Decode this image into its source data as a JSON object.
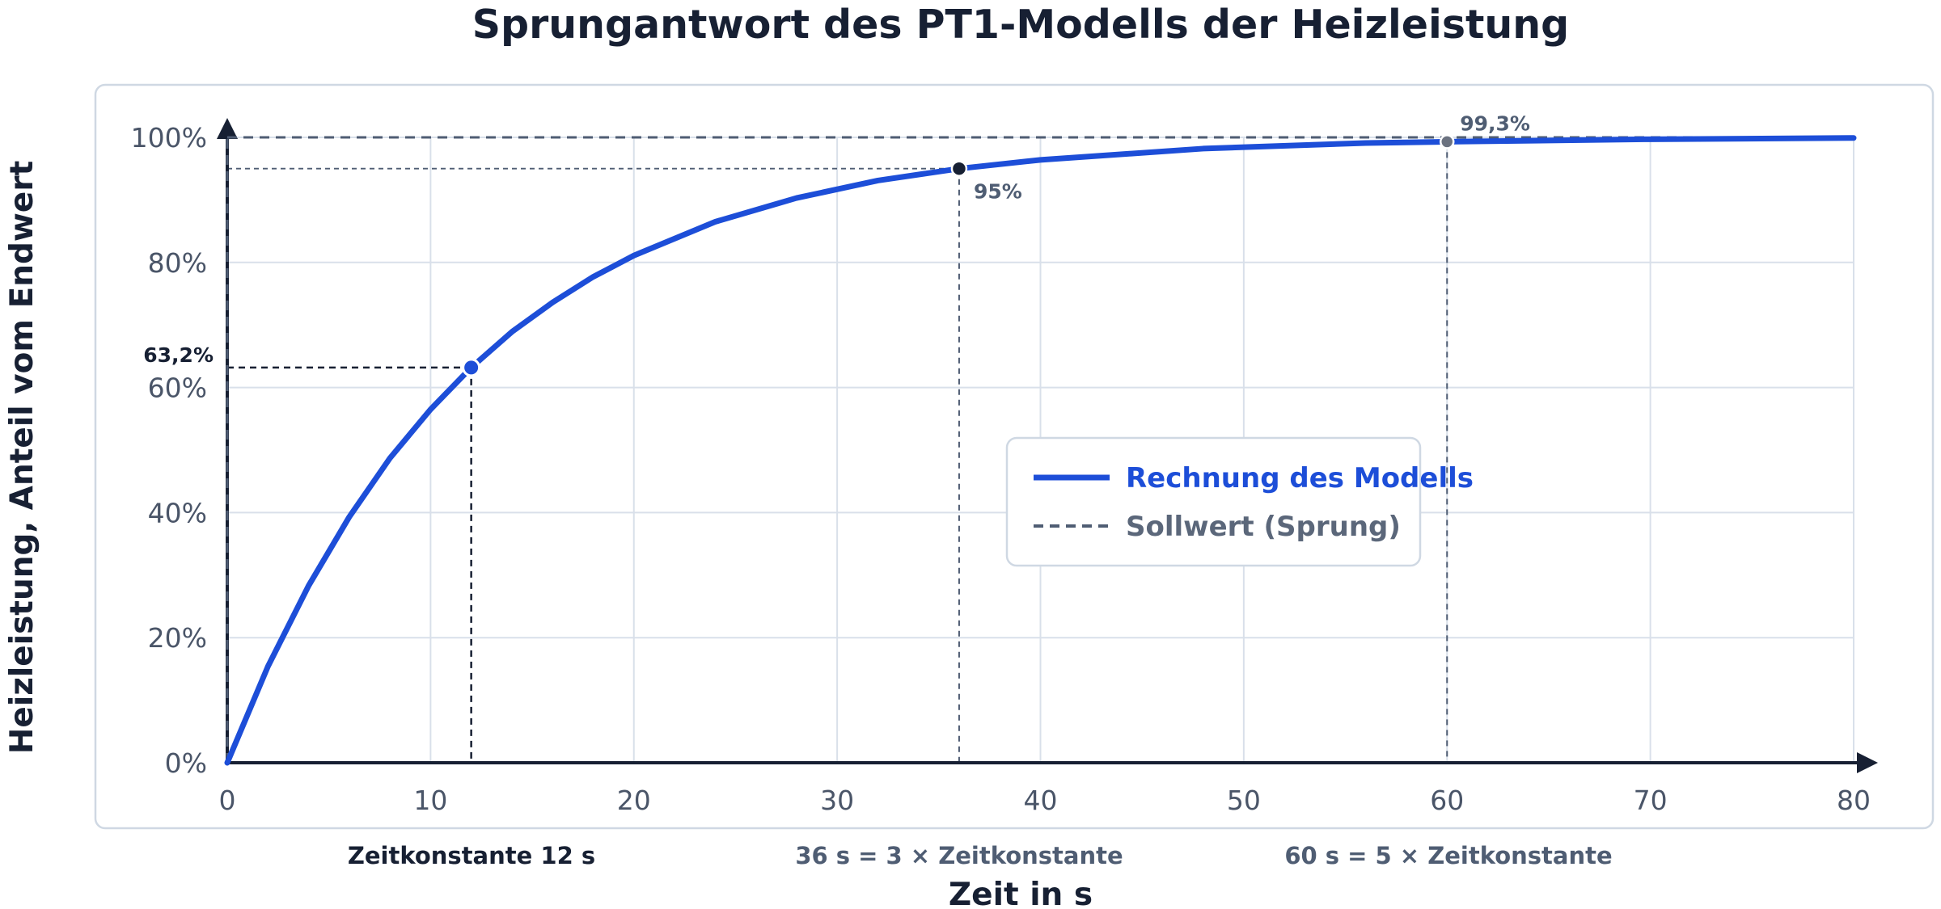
{
  "chart_data": {
    "type": "line",
    "title": "Sprungantwort des PT1-Modells der Heizleistung",
    "xlabel": "Zeit in s",
    "ylabel": "Heizleistung, Anteil vom Endwert",
    "xlim": [
      0,
      80
    ],
    "ylim": [
      0,
      100
    ],
    "x_ticks": [
      "0",
      "10",
      "20",
      "30",
      "40",
      "50",
      "60",
      "70",
      "80"
    ],
    "y_ticks": [
      "0%",
      "20%",
      "40%",
      "60%",
      "80%",
      "100%"
    ],
    "grid": true,
    "legend_position": "center-right",
    "series": [
      {
        "name": "Rechnung des Modells",
        "style": "solid",
        "color": "#1d4ed8",
        "x": [
          0,
          2,
          4,
          6,
          8,
          10,
          12,
          14,
          16,
          18,
          20,
          24,
          28,
          32,
          36,
          40,
          48,
          56,
          60,
          70,
          80
        ],
        "y": [
          0,
          15.4,
          28.3,
          39.3,
          48.7,
          56.5,
          63.2,
          68.9,
          73.6,
          77.7,
          81.1,
          86.5,
          90.3,
          93.1,
          95.0,
          96.4,
          98.2,
          99.1,
          99.3,
          99.7,
          99.9
        ]
      },
      {
        "name": "Sollwert (Sprung)",
        "style": "dashed",
        "color": "#4f5d73",
        "x": [
          0,
          80
        ],
        "y": [
          100,
          100
        ]
      }
    ],
    "markers": [
      {
        "x": 12,
        "y": 63.2,
        "label": "63,2%",
        "color": "#1d4ed8"
      },
      {
        "x": 36,
        "y": 95,
        "label": "95%",
        "color": "#172033"
      },
      {
        "x": 60,
        "y": 99.3,
        "label": "99,3%",
        "color": "#6b7280"
      }
    ],
    "annotations": [
      "Zeitkonstante 12 s",
      "36 s = 3 × Zeitkonstante",
      "60 s = 5 × Zeitkonstante"
    ]
  }
}
